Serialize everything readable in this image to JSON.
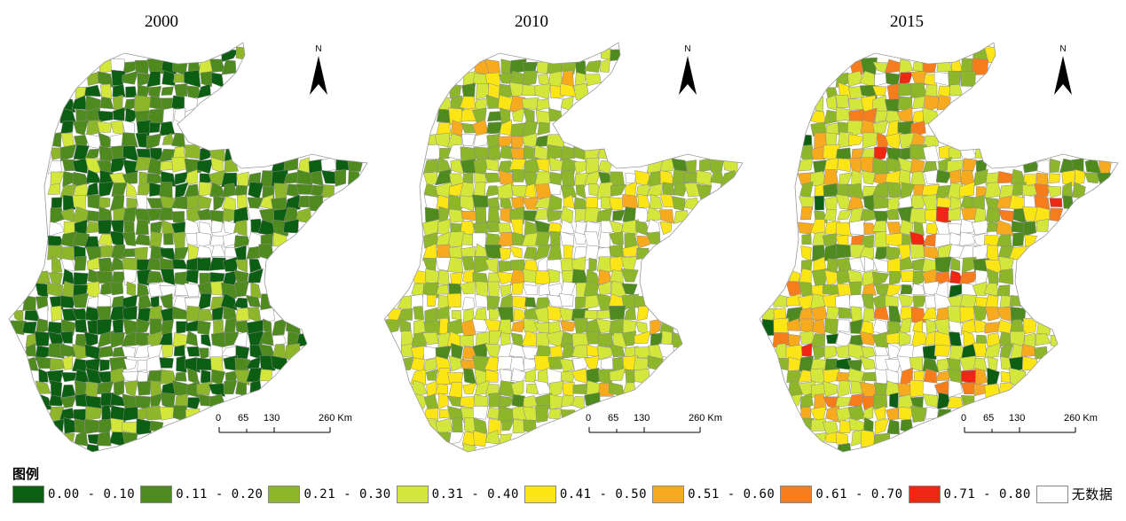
{
  "panels": [
    {
      "year": "2000",
      "palette_weights": [
        0.35,
        0.4,
        0.15,
        0.1,
        0.0,
        0.0,
        0.0,
        0.0
      ],
      "nodata_weight": 0.04
    },
    {
      "year": "2010",
      "palette_weights": [
        0.0,
        0.07,
        0.3,
        0.38,
        0.2,
        0.05,
        0.0,
        0.0
      ],
      "nodata_weight": 0.05
    },
    {
      "year": "2015",
      "palette_weights": [
        0.02,
        0.1,
        0.22,
        0.28,
        0.18,
        0.1,
        0.08,
        0.02
      ],
      "nodata_weight": 0.05
    }
  ],
  "north_arrow_label": "N",
  "scale_bar": {
    "labels": [
      "0",
      "65",
      "130",
      "260 Km"
    ]
  },
  "legend": {
    "title": "图例",
    "items": [
      {
        "label": "0.00 - 0.10",
        "color": "#0b5e12"
      },
      {
        "label": "0.11 - 0.20",
        "color": "#4f8a1e"
      },
      {
        "label": "0.21 - 0.30",
        "color": "#8db62a"
      },
      {
        "label": "0.31 - 0.40",
        "color": "#d3e63a"
      },
      {
        "label": "0.41 - 0.50",
        "color": "#fbe515"
      },
      {
        "label": "0.51 - 0.60",
        "color": "#f8aa1e"
      },
      {
        "label": "0.61 - 0.70",
        "color": "#f77d1c"
      },
      {
        "label": "0.71 - 0.80",
        "color": "#ee2612"
      },
      {
        "label": "无数据",
        "color": "#ffffff"
      }
    ]
  }
}
